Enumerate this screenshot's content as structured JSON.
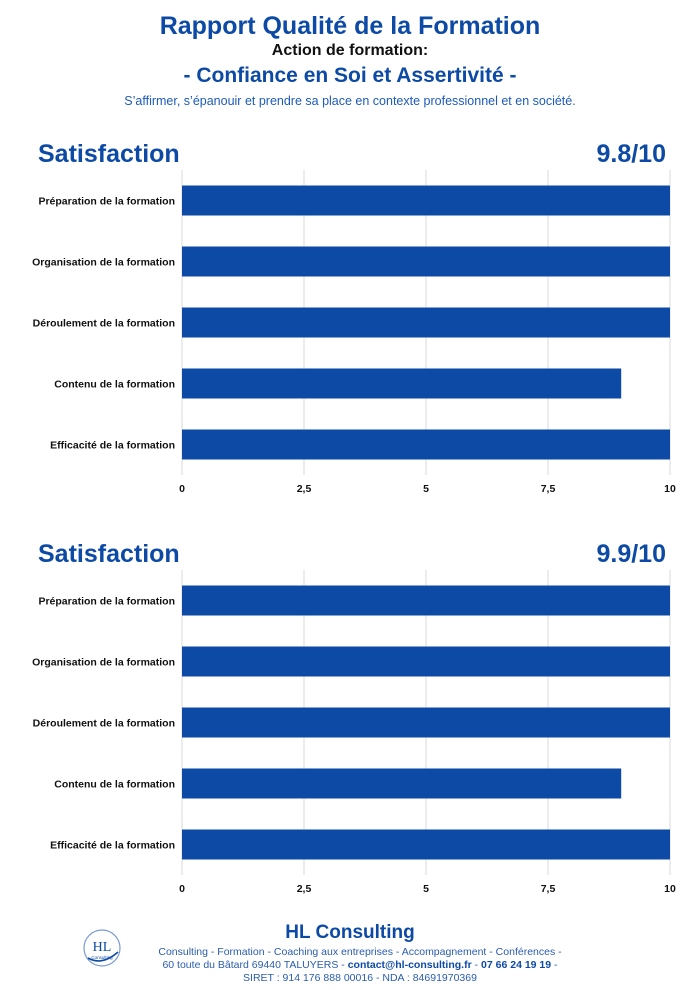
{
  "header": {
    "title": "Rapport Qualité de la Formation",
    "action_label": "Action de formation:",
    "course": "- Confiance en Soi et Assertivité -",
    "tagline": "S’affirmer, s’épanouir et prendre sa place en contexte professionnel et en société."
  },
  "charts_meta": [
    {
      "heading": "Satisfaction",
      "score": "9.8/10"
    },
    {
      "heading": "Satisfaction",
      "score": "9.9/10"
    }
  ],
  "chart_data": [
    {
      "type": "bar",
      "orientation": "horizontal",
      "title": "Satisfaction",
      "categories": [
        "Préparation de la formation",
        "Organisation de la formation",
        "Déroulement de la formation",
        "Contenu de la formation",
        "Efficacité de la formation"
      ],
      "values": [
        10,
        10,
        10,
        9,
        10
      ],
      "xlim": [
        0,
        10
      ],
      "xticks": [
        "0",
        "2,5",
        "5",
        "7,5",
        "10"
      ],
      "xtick_values": [
        0,
        2.5,
        5,
        7.5,
        10
      ],
      "grid": true,
      "bar_color": "#0d4aa6"
    },
    {
      "type": "bar",
      "orientation": "horizontal",
      "title": "Satisfaction",
      "categories": [
        "Préparation de la formation",
        "Organisation de la formation",
        "Déroulement de la formation",
        "Contenu de la formation",
        "Efficacité de la formation"
      ],
      "values": [
        10,
        10,
        10,
        9,
        10
      ],
      "xlim": [
        0,
        10
      ],
      "xticks": [
        "0",
        "2,5",
        "5",
        "7,5",
        "10"
      ],
      "xtick_values": [
        0,
        2.5,
        5,
        7.5,
        10
      ],
      "grid": true,
      "bar_color": "#0d4aa6"
    }
  ],
  "footer": {
    "company": "HL Consulting",
    "services": "Consulting - Formation - Coaching aux entreprises - Accompagnement - Conférences  -",
    "address": "60 toute du Bâtard 69440 TALUYERS - ",
    "email": "contact@hl-consulting.fr",
    "sep": " - ",
    "phone": "07 66 24 19 19",
    "phone_suffix": " -",
    "legal": "SIRET : 914 176 888 00016 - NDA : 84691970369",
    "logo_text": "HL",
    "logo_sub": "Consulting"
  },
  "colors": {
    "accent": "#0d4aa6",
    "grid": "#d9d9d9"
  }
}
